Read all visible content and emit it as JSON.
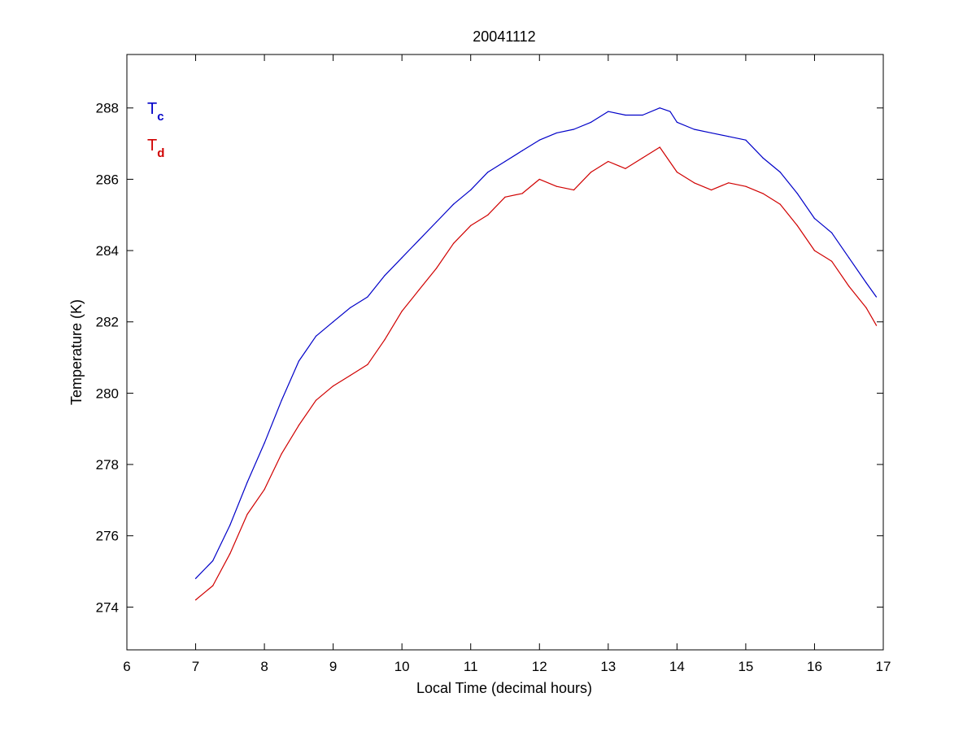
{
  "chart_data": {
    "type": "line",
    "title": "20041112",
    "xlabel": "Local Time (decimal hours)",
    "ylabel": "Temperature (K)",
    "xlim": [
      6,
      17
    ],
    "ylim": [
      272.8,
      289.5
    ],
    "x_ticks": [
      "6",
      "7",
      "8",
      "9",
      "10",
      "11",
      "12",
      "13",
      "14",
      "15",
      "16",
      "17"
    ],
    "y_ticks": [
      "274",
      "276",
      "278",
      "280",
      "282",
      "284",
      "286",
      "288"
    ],
    "grid": false,
    "legend_position": "top-left",
    "series": [
      {
        "name": "Tc",
        "legend_main": "T",
        "legend_sub": "c",
        "color": "#0000c8",
        "x": [
          7.0,
          7.25,
          7.5,
          7.75,
          8.0,
          8.25,
          8.5,
          8.75,
          9.0,
          9.25,
          9.5,
          9.75,
          10.0,
          10.25,
          10.5,
          10.75,
          11.0,
          11.25,
          11.5,
          11.75,
          12.0,
          12.25,
          12.5,
          12.75,
          13.0,
          13.25,
          13.5,
          13.75,
          13.9,
          14.0,
          14.25,
          14.5,
          14.75,
          15.0,
          15.25,
          15.5,
          15.75,
          16.0,
          16.25,
          16.5,
          16.75,
          16.9
        ],
        "y": [
          274.8,
          275.3,
          276.3,
          277.5,
          278.6,
          279.8,
          280.9,
          281.6,
          282.0,
          282.4,
          282.7,
          283.3,
          283.8,
          284.3,
          284.8,
          285.3,
          285.7,
          286.2,
          286.5,
          286.8,
          287.1,
          287.3,
          287.4,
          287.6,
          287.9,
          287.8,
          287.8,
          288.0,
          287.9,
          287.6,
          287.4,
          287.3,
          287.2,
          287.1,
          286.6,
          286.2,
          285.6,
          284.9,
          284.5,
          283.8,
          283.1,
          282.7
        ]
      },
      {
        "name": "Td",
        "legend_main": "T",
        "legend_sub": "d",
        "color": "#d00000",
        "x": [
          7.0,
          7.25,
          7.5,
          7.75,
          8.0,
          8.25,
          8.5,
          8.75,
          9.0,
          9.25,
          9.5,
          9.75,
          10.0,
          10.25,
          10.5,
          10.75,
          11.0,
          11.25,
          11.5,
          11.75,
          12.0,
          12.25,
          12.5,
          12.75,
          13.0,
          13.25,
          13.5,
          13.75,
          14.0,
          14.25,
          14.5,
          14.75,
          15.0,
          15.25,
          15.5,
          15.75,
          16.0,
          16.25,
          16.5,
          16.75,
          16.9
        ],
        "y": [
          274.2,
          274.6,
          275.5,
          276.6,
          277.3,
          278.3,
          279.1,
          279.8,
          280.2,
          280.5,
          280.8,
          281.5,
          282.3,
          282.9,
          283.5,
          284.2,
          284.7,
          285.0,
          285.5,
          285.6,
          286.0,
          285.8,
          285.7,
          286.2,
          286.5,
          286.3,
          286.6,
          286.9,
          286.2,
          285.9,
          285.7,
          285.9,
          285.8,
          285.6,
          285.3,
          284.7,
          284.0,
          283.7,
          283.0,
          282.4,
          281.9
        ]
      }
    ]
  }
}
